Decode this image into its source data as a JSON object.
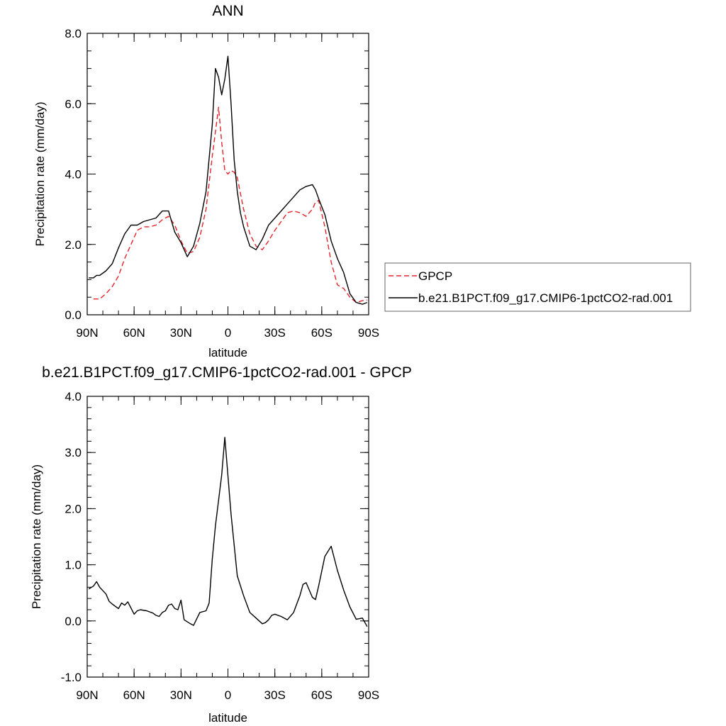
{
  "chart_data": [
    {
      "type": "line",
      "title": "ANN",
      "xlabel": "latitude",
      "ylabel": "Precipitation rate (mm/day)",
      "xlim": [
        90,
        -90
      ],
      "ylim": [
        0,
        8
      ],
      "x_ticks": [
        90,
        60,
        30,
        0,
        -30,
        -60,
        -90
      ],
      "x_tick_labels": [
        "90N",
        "60N",
        "30N",
        "0",
        "30S",
        "60S",
        "90S"
      ],
      "y_ticks": [
        0,
        2,
        4,
        6,
        8
      ],
      "y_tick_labels": [
        "0.0",
        "2.0",
        "4.0",
        "6.0",
        "8.0"
      ],
      "legend_position": "right",
      "series": [
        {
          "name": "GPCP",
          "color": "#e3242b",
          "dash": "dashed",
          "x": [
            86,
            82,
            78,
            74,
            70,
            66,
            62,
            58,
            54,
            50,
            46,
            42,
            38,
            34,
            30,
            26,
            22,
            18,
            14,
            10,
            6,
            4,
            2,
            0,
            -2,
            -4,
            -6,
            -10,
            -14,
            -18,
            -22,
            -26,
            -30,
            -34,
            -38,
            -42,
            -46,
            -50,
            -54,
            -56,
            -58,
            -62,
            -66,
            -70,
            -74,
            -78,
            -82,
            -86,
            -89
          ],
          "values": [
            0.45,
            0.45,
            0.6,
            0.8,
            1.1,
            1.6,
            2.0,
            2.4,
            2.5,
            2.5,
            2.55,
            2.7,
            2.8,
            2.55,
            2.1,
            1.75,
            1.8,
            2.2,
            3.0,
            4.5,
            5.9,
            4.9,
            4.1,
            4.0,
            4.1,
            4.05,
            3.9,
            3.0,
            2.3,
            1.95,
            1.85,
            2.1,
            2.4,
            2.65,
            2.9,
            2.95,
            2.9,
            2.8,
            3.0,
            3.2,
            3.25,
            2.5,
            1.5,
            0.85,
            0.75,
            0.5,
            0.35,
            0.4,
            0.42
          ]
        },
        {
          "name": "b.e21.B1PCT.f09_g17.CMIP6-1pctCO2-rad.001",
          "color": "#000000",
          "dash": "solid",
          "x": [
            89,
            86,
            84,
            82,
            78,
            74,
            70,
            66,
            62,
            58,
            54,
            50,
            46,
            42,
            38,
            34,
            30,
            26,
            22,
            18,
            14,
            10,
            8,
            6,
            4,
            2,
            0,
            -2,
            -4,
            -6,
            -8,
            -10,
            -14,
            -18,
            -22,
            -26,
            -30,
            -34,
            -38,
            -42,
            -46,
            -50,
            -54,
            -56,
            -58,
            -62,
            -66,
            -70,
            -74,
            -78,
            -82,
            -86,
            -89
          ],
          "values": [
            1.05,
            1.05,
            1.12,
            1.12,
            1.25,
            1.45,
            1.9,
            2.3,
            2.55,
            2.55,
            2.65,
            2.7,
            2.75,
            2.95,
            2.95,
            2.35,
            2.05,
            1.65,
            1.95,
            2.6,
            3.5,
            5.4,
            7.0,
            6.75,
            6.25,
            6.7,
            7.35,
            6.0,
            4.4,
            3.5,
            2.9,
            2.5,
            1.95,
            1.85,
            2.15,
            2.55,
            2.75,
            2.95,
            3.15,
            3.35,
            3.55,
            3.65,
            3.7,
            3.55,
            3.3,
            2.85,
            2.1,
            1.6,
            1.2,
            0.6,
            0.35,
            0.3,
            0.35
          ]
        }
      ]
    },
    {
      "type": "line",
      "title": "b.e21.B1PCT.f09_g17.CMIP6-1pctCO2-rad.001 - GPCP",
      "xlabel": "latitude",
      "ylabel": "Precipitation rate (mm/day)",
      "xlim": [
        90,
        -90
      ],
      "ylim": [
        -1,
        4
      ],
      "x_ticks": [
        90,
        60,
        30,
        0,
        -30,
        -60,
        -90
      ],
      "x_tick_labels": [
        "90N",
        "60N",
        "30N",
        "0",
        "30S",
        "60S",
        "90S"
      ],
      "y_ticks": [
        -1,
        0,
        1,
        2,
        3,
        4
      ],
      "y_tick_labels": [
        "-1.0",
        "0.0",
        "1.0",
        "2.0",
        "3.0",
        "4.0"
      ],
      "series": [
        {
          "color": "#000000",
          "dash": "solid",
          "x": [
            89,
            86,
            84,
            82,
            78,
            76,
            74,
            70,
            68,
            66,
            64,
            60,
            58,
            56,
            52,
            48,
            46,
            44,
            42,
            40,
            38,
            36,
            34,
            32,
            30,
            28,
            24,
            22,
            18,
            14,
            12,
            10,
            8,
            4,
            2,
            -2,
            -6,
            -10,
            -14,
            -18,
            -22,
            -24,
            -26,
            -28,
            -30,
            -34,
            -38,
            -42,
            -44,
            -46,
            -48,
            -50,
            -54,
            -56,
            -58,
            -62,
            -66,
            -70,
            -74,
            -78,
            -82,
            -86,
            -89
          ],
          "values": [
            0.57,
            0.62,
            0.7,
            0.6,
            0.48,
            0.35,
            0.3,
            0.22,
            0.32,
            0.28,
            0.34,
            0.12,
            0.18,
            0.2,
            0.18,
            0.14,
            0.1,
            0.08,
            0.15,
            0.18,
            0.28,
            0.3,
            0.22,
            0.2,
            0.37,
            0.02,
            -0.05,
            -0.08,
            0.15,
            0.18,
            0.32,
            1.1,
            1.7,
            2.6,
            3.27,
            1.9,
            0.8,
            0.45,
            0.15,
            0.05,
            -0.05,
            -0.03,
            0.02,
            0.1,
            0.12,
            0.08,
            0.02,
            0.15,
            0.3,
            0.45,
            0.65,
            0.68,
            0.42,
            0.38,
            0.62,
            1.15,
            1.33,
            0.9,
            0.55,
            0.25,
            0.03,
            0.05,
            -0.1
          ]
        }
      ]
    }
  ]
}
